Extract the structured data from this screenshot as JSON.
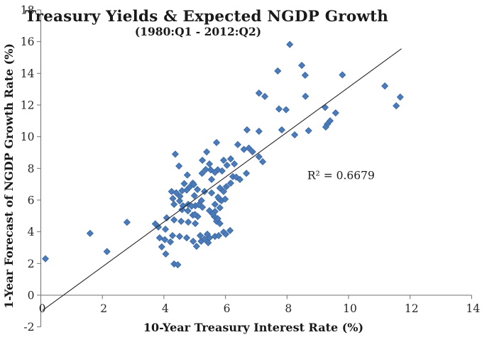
{
  "chart_data": {
    "type": "scatter",
    "title": "Treasury Yields & Expected NGDP Growth",
    "subtitle": "(1980:Q1 - 2012:Q2)",
    "xlabel": "10-Year Treasury Interest Rate (%)",
    "ylabel": "1-Year Forecast  of NGDP Growth Rate (%)",
    "xlim": [
      0,
      14
    ],
    "ylim": [
      -2,
      18
    ],
    "x_ticks": [
      0,
      2,
      4,
      6,
      8,
      10,
      12,
      14
    ],
    "y_ticks": [
      -2,
      0,
      2,
      4,
      6,
      8,
      10,
      12,
      14,
      16,
      18
    ],
    "grid": false,
    "legend_position": "none",
    "r_squared": 0.6679,
    "annotation": {
      "text": "R² = 0.6679",
      "x": 8.66,
      "y": 7.32
    },
    "trendline": {
      "x1": 0.05,
      "y1": -0.97,
      "x2": 11.72,
      "y2": 15.55
    },
    "colors": {
      "marker": "#4b7bb8",
      "marker_edge": "#3f6ca8",
      "trendline": "#262626",
      "axis": "#707070"
    },
    "points": [
      [
        0.15,
        2.3
      ],
      [
        1.6,
        3.9
      ],
      [
        2.15,
        2.75
      ],
      [
        2.8,
        4.6
      ],
      [
        3.72,
        4.5
      ],
      [
        3.82,
        4.3
      ],
      [
        3.86,
        3.62
      ],
      [
        3.93,
        3.05
      ],
      [
        4.03,
        3.5
      ],
      [
        4.21,
        3.36
      ],
      [
        4.06,
        2.6
      ],
      [
        4.33,
        1.97
      ],
      [
        4.45,
        1.92
      ],
      [
        4.05,
        4.16
      ],
      [
        4.09,
        4.88
      ],
      [
        4.28,
        3.76
      ],
      [
        4.51,
        3.71
      ],
      [
        4.74,
        3.62
      ],
      [
        4.33,
        4.75
      ],
      [
        4.56,
        4.66
      ],
      [
        4.79,
        4.61
      ],
      [
        5.02,
        4.52
      ],
      [
        5.18,
        3.76
      ],
      [
        5.41,
        3.85
      ],
      [
        5.66,
        3.71
      ],
      [
        5.21,
        3.4
      ],
      [
        5.44,
        3.31
      ],
      [
        4.95,
        3.4
      ],
      [
        5.06,
        3.08
      ],
      [
        5.32,
        3.54
      ],
      [
        5.48,
        3.62
      ],
      [
        5.71,
        4.66
      ],
      [
        5.82,
        4.52
      ],
      [
        5.94,
        3.98
      ],
      [
        6.01,
        3.85
      ],
      [
        5.78,
        3.76
      ],
      [
        6.15,
        4.08
      ],
      [
        4.33,
        5.73
      ],
      [
        4.51,
        5.95
      ],
      [
        4.62,
        5.64
      ],
      [
        4.79,
        5.73
      ],
      [
        5.02,
        5.64
      ],
      [
        5.25,
        5.55
      ],
      [
        5.48,
        5.33
      ],
      [
        5.66,
        5.28
      ],
      [
        4.59,
        5.4
      ],
      [
        4.78,
        5.32
      ],
      [
        4.94,
        5.05
      ],
      [
        5.1,
        4.96
      ],
      [
        5.64,
        4.96
      ],
      [
        5.75,
        4.83
      ],
      [
        5.13,
        5.71
      ],
      [
        5.59,
        5.11
      ],
      [
        5.66,
        5.73
      ],
      [
        5.82,
        5.51
      ],
      [
        5.87,
        5.96
      ],
      [
        4.9,
        5.62
      ],
      [
        5.01,
        5.09
      ],
      [
        4.99,
        6.28
      ],
      [
        4.83,
        6.81
      ],
      [
        4.94,
        7.07
      ],
      [
        4.74,
        6.63
      ],
      [
        4.97,
        6.98
      ],
      [
        5.09,
        6.67
      ],
      [
        5.32,
        6.54
      ],
      [
        5.55,
        6.45
      ],
      [
        5.22,
        5.97
      ],
      [
        5.8,
        6.06
      ],
      [
        5.99,
        6.06
      ],
      [
        5.76,
        6.18
      ],
      [
        5.82,
        6.76
      ],
      [
        5.94,
        6.54
      ],
      [
        6.17,
        7.07
      ],
      [
        6.03,
        6.85
      ],
      [
        4.25,
        6.54
      ],
      [
        4.4,
        6.46
      ],
      [
        4.52,
        6.24
      ],
      [
        4.29,
        6.1
      ],
      [
        4.59,
        6.59
      ],
      [
        4.66,
        7.04
      ],
      [
        4.76,
        7.58
      ],
      [
        5.24,
        7.69
      ],
      [
        5.52,
        7.91
      ],
      [
        5.75,
        7.91
      ],
      [
        5.36,
        7.93
      ],
      [
        5.66,
        7.75
      ],
      [
        5.89,
        7.84
      ],
      [
        5.55,
        7.3
      ],
      [
        6.24,
        7.48
      ],
      [
        6.47,
        7.3
      ],
      [
        6.68,
        7.69
      ],
      [
        6.35,
        7.45
      ],
      [
        5.25,
        8.51
      ],
      [
        5.48,
        8.28
      ],
      [
        5.94,
        8.51
      ],
      [
        6.05,
        8.2
      ],
      [
        6.17,
        8.6
      ],
      [
        6.29,
        8.28
      ],
      [
        7.09,
        8.73
      ],
      [
        7.21,
        8.42
      ],
      [
        5.39,
        9.04
      ],
      [
        5.71,
        9.63
      ],
      [
        6.4,
        9.5
      ],
      [
        6.6,
        9.2
      ],
      [
        6.76,
        9.28
      ],
      [
        6.88,
        9.05
      ],
      [
        4.37,
        8.9
      ],
      [
        4.49,
        8.15
      ],
      [
        6.7,
        10.43
      ],
      [
        7.09,
        10.34
      ],
      [
        7.83,
        10.43
      ],
      [
        8.25,
        10.12
      ],
      [
        8.7,
        10.38
      ],
      [
        7.7,
        14.15
      ],
      [
        8.09,
        15.82
      ],
      [
        8.48,
        14.5
      ],
      [
        8.59,
        13.88
      ],
      [
        7.09,
        12.75
      ],
      [
        7.28,
        12.54
      ],
      [
        8.6,
        12.55
      ],
      [
        7.74,
        11.75
      ],
      [
        7.97,
        11.7
      ],
      [
        9.24,
        11.85
      ],
      [
        9.58,
        11.5
      ],
      [
        9.4,
        11.0
      ],
      [
        9.31,
        10.79
      ],
      [
        9.26,
        10.61
      ],
      [
        9.8,
        13.9
      ],
      [
        11.18,
        13.2
      ],
      [
        11.68,
        12.5
      ],
      [
        11.55,
        11.95
      ]
    ]
  }
}
